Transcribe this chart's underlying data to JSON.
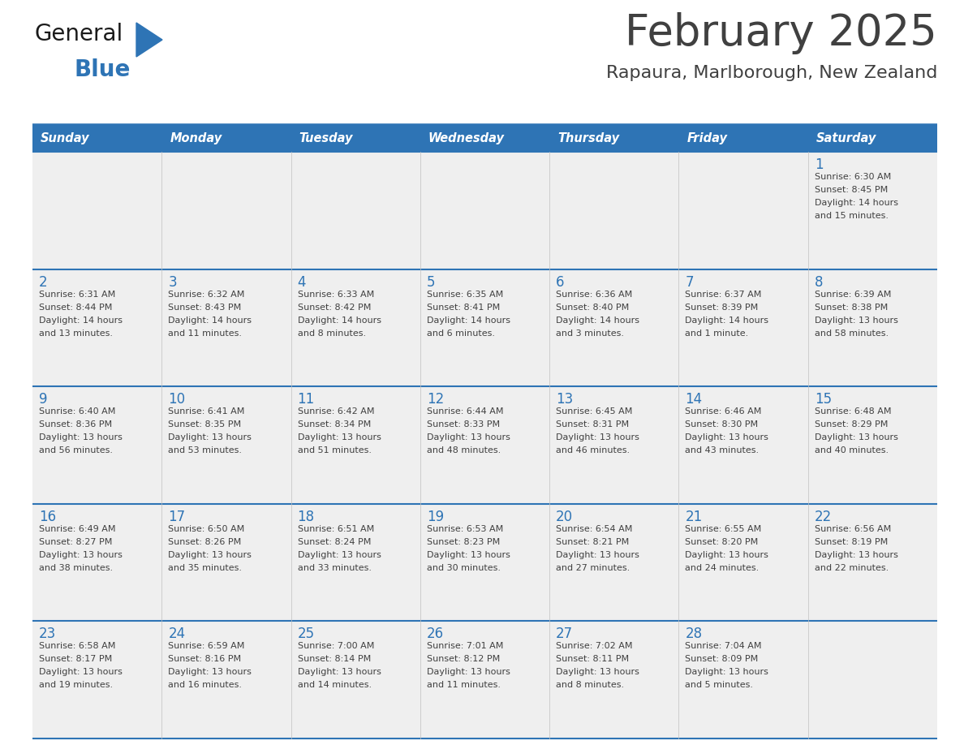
{
  "title": "February 2025",
  "subtitle": "Rapaura, Marlborough, New Zealand",
  "days_of_week": [
    "Sunday",
    "Monday",
    "Tuesday",
    "Wednesday",
    "Thursday",
    "Friday",
    "Saturday"
  ],
  "header_bg": "#2E74B5",
  "header_text": "#FFFFFF",
  "cell_bg_light": "#EFEFEF",
  "cell_bg_white": "#FFFFFF",
  "day_number_color": "#2E74B5",
  "text_color": "#404040",
  "divider_color": "#2E74B5",
  "title_color": "#404040",
  "subtitle_color": "#404040",
  "logo_general_color": "#1a1a1a",
  "logo_blue_color": "#2E74B5",
  "logo_triangle_color": "#2E74B5",
  "weeks": [
    [
      {
        "day": null,
        "sunrise": null,
        "sunset": null,
        "daylight": null
      },
      {
        "day": null,
        "sunrise": null,
        "sunset": null,
        "daylight": null
      },
      {
        "day": null,
        "sunrise": null,
        "sunset": null,
        "daylight": null
      },
      {
        "day": null,
        "sunrise": null,
        "sunset": null,
        "daylight": null
      },
      {
        "day": null,
        "sunrise": null,
        "sunset": null,
        "daylight": null
      },
      {
        "day": null,
        "sunrise": null,
        "sunset": null,
        "daylight": null
      },
      {
        "day": 1,
        "sunrise": "6:30 AM",
        "sunset": "8:45 PM",
        "daylight": "14 hours\nand 15 minutes."
      }
    ],
    [
      {
        "day": 2,
        "sunrise": "6:31 AM",
        "sunset": "8:44 PM",
        "daylight": "14 hours\nand 13 minutes."
      },
      {
        "day": 3,
        "sunrise": "6:32 AM",
        "sunset": "8:43 PM",
        "daylight": "14 hours\nand 11 minutes."
      },
      {
        "day": 4,
        "sunrise": "6:33 AM",
        "sunset": "8:42 PM",
        "daylight": "14 hours\nand 8 minutes."
      },
      {
        "day": 5,
        "sunrise": "6:35 AM",
        "sunset": "8:41 PM",
        "daylight": "14 hours\nand 6 minutes."
      },
      {
        "day": 6,
        "sunrise": "6:36 AM",
        "sunset": "8:40 PM",
        "daylight": "14 hours\nand 3 minutes."
      },
      {
        "day": 7,
        "sunrise": "6:37 AM",
        "sunset": "8:39 PM",
        "daylight": "14 hours\nand 1 minute."
      },
      {
        "day": 8,
        "sunrise": "6:39 AM",
        "sunset": "8:38 PM",
        "daylight": "13 hours\nand 58 minutes."
      }
    ],
    [
      {
        "day": 9,
        "sunrise": "6:40 AM",
        "sunset": "8:36 PM",
        "daylight": "13 hours\nand 56 minutes."
      },
      {
        "day": 10,
        "sunrise": "6:41 AM",
        "sunset": "8:35 PM",
        "daylight": "13 hours\nand 53 minutes."
      },
      {
        "day": 11,
        "sunrise": "6:42 AM",
        "sunset": "8:34 PM",
        "daylight": "13 hours\nand 51 minutes."
      },
      {
        "day": 12,
        "sunrise": "6:44 AM",
        "sunset": "8:33 PM",
        "daylight": "13 hours\nand 48 minutes."
      },
      {
        "day": 13,
        "sunrise": "6:45 AM",
        "sunset": "8:31 PM",
        "daylight": "13 hours\nand 46 minutes."
      },
      {
        "day": 14,
        "sunrise": "6:46 AM",
        "sunset": "8:30 PM",
        "daylight": "13 hours\nand 43 minutes."
      },
      {
        "day": 15,
        "sunrise": "6:48 AM",
        "sunset": "8:29 PM",
        "daylight": "13 hours\nand 40 minutes."
      }
    ],
    [
      {
        "day": 16,
        "sunrise": "6:49 AM",
        "sunset": "8:27 PM",
        "daylight": "13 hours\nand 38 minutes."
      },
      {
        "day": 17,
        "sunrise": "6:50 AM",
        "sunset": "8:26 PM",
        "daylight": "13 hours\nand 35 minutes."
      },
      {
        "day": 18,
        "sunrise": "6:51 AM",
        "sunset": "8:24 PM",
        "daylight": "13 hours\nand 33 minutes."
      },
      {
        "day": 19,
        "sunrise": "6:53 AM",
        "sunset": "8:23 PM",
        "daylight": "13 hours\nand 30 minutes."
      },
      {
        "day": 20,
        "sunrise": "6:54 AM",
        "sunset": "8:21 PM",
        "daylight": "13 hours\nand 27 minutes."
      },
      {
        "day": 21,
        "sunrise": "6:55 AM",
        "sunset": "8:20 PM",
        "daylight": "13 hours\nand 24 minutes."
      },
      {
        "day": 22,
        "sunrise": "6:56 AM",
        "sunset": "8:19 PM",
        "daylight": "13 hours\nand 22 minutes."
      }
    ],
    [
      {
        "day": 23,
        "sunrise": "6:58 AM",
        "sunset": "8:17 PM",
        "daylight": "13 hours\nand 19 minutes."
      },
      {
        "day": 24,
        "sunrise": "6:59 AM",
        "sunset": "8:16 PM",
        "daylight": "13 hours\nand 16 minutes."
      },
      {
        "day": 25,
        "sunrise": "7:00 AM",
        "sunset": "8:14 PM",
        "daylight": "13 hours\nand 14 minutes."
      },
      {
        "day": 26,
        "sunrise": "7:01 AM",
        "sunset": "8:12 PM",
        "daylight": "13 hours\nand 11 minutes."
      },
      {
        "day": 27,
        "sunrise": "7:02 AM",
        "sunset": "8:11 PM",
        "daylight": "13 hours\nand 8 minutes."
      },
      {
        "day": 28,
        "sunrise": "7:04 AM",
        "sunset": "8:09 PM",
        "daylight": "13 hours\nand 5 minutes."
      },
      {
        "day": null,
        "sunrise": null,
        "sunset": null,
        "daylight": null
      }
    ]
  ]
}
